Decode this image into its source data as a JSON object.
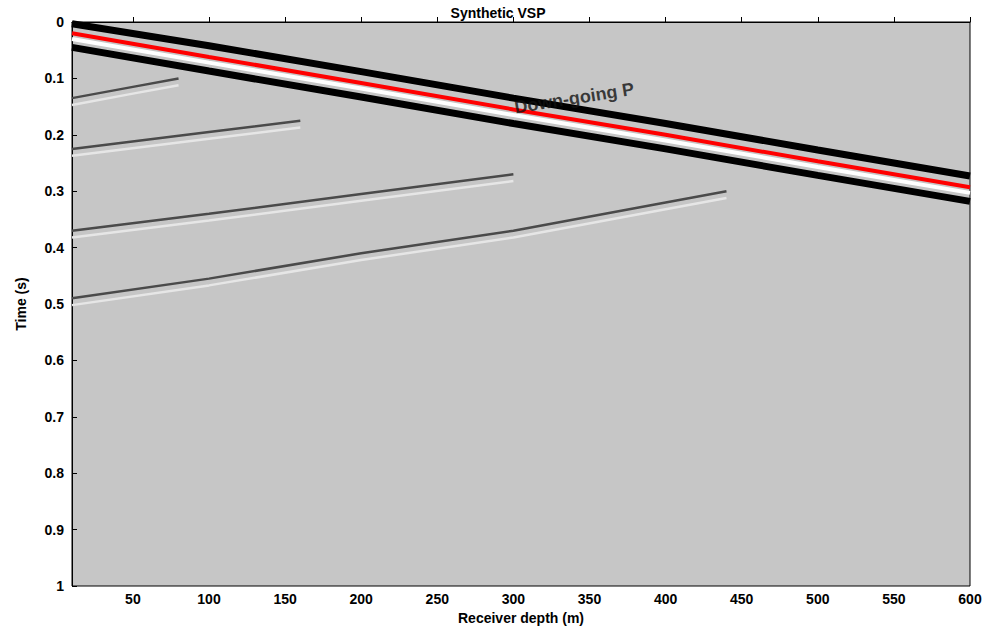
{
  "chart_data": {
    "type": "line",
    "title": "Synthetic VSP",
    "xlabel": "Receiver depth (m)",
    "ylabel": "Time (s)",
    "xlim": [
      10,
      600
    ],
    "xticks": [
      50,
      100,
      150,
      200,
      250,
      300,
      350,
      400,
      450,
      500,
      550,
      600
    ],
    "ylim": [
      0,
      1
    ],
    "yticks": [
      0,
      0.1,
      0.2,
      0.3,
      0.4,
      0.5,
      0.6,
      0.7,
      0.8,
      0.9,
      1
    ],
    "grid": false,
    "annotations": [
      {
        "text": "Down-going P",
        "x": 340,
        "y": 0.135
      }
    ],
    "series": [
      {
        "color": "#4a4a4a",
        "line_style": "solid",
        "x": [
          10,
          50,
          80
        ],
        "values": [
          0.135,
          0.115,
          0.1
        ]
      },
      {
        "color": "#e6e6e6",
        "line_style": "solid",
        "x": [
          10,
          50,
          80
        ],
        "values": [
          0.147,
          0.127,
          0.112
        ]
      },
      {
        "color": "#4a4a4a",
        "line_style": "solid",
        "x": [
          10,
          100,
          160
        ],
        "values": [
          0.225,
          0.195,
          0.175
        ]
      },
      {
        "color": "#e6e6e6",
        "line_style": "solid",
        "x": [
          10,
          100,
          160
        ],
        "values": [
          0.237,
          0.207,
          0.187
        ]
      },
      {
        "color": "#4a4a4a",
        "line_style": "solid",
        "x": [
          10,
          100,
          200,
          300
        ],
        "values": [
          0.37,
          0.34,
          0.305,
          0.27
        ]
      },
      {
        "color": "#e6e6e6",
        "line_style": "solid",
        "x": [
          10,
          100,
          200,
          300
        ],
        "values": [
          0.382,
          0.352,
          0.317,
          0.282
        ]
      },
      {
        "color": "#4a4a4a",
        "line_style": "solid",
        "x": [
          10,
          100,
          200,
          300,
          400,
          440
        ],
        "values": [
          0.49,
          0.455,
          0.41,
          0.37,
          0.32,
          0.3
        ]
      },
      {
        "color": "#e6e6e6",
        "line_style": "solid",
        "x": [
          10,
          100,
          200,
          300,
          400,
          440
        ],
        "values": [
          0.502,
          0.467,
          0.422,
          0.382,
          0.332,
          0.312
        ]
      },
      {
        "color": "#000000",
        "line_style": "bold",
        "x": [
          10,
          100,
          200,
          300,
          400,
          500,
          600
        ],
        "values": [
          0.003,
          0.042,
          0.088,
          0.135,
          0.18,
          0.227,
          0.273
        ]
      },
      {
        "color": "#000000",
        "line_style": "bold",
        "x": [
          10,
          100,
          200,
          300,
          400,
          500,
          600
        ],
        "values": [
          0.045,
          0.087,
          0.133,
          0.18,
          0.225,
          0.272,
          0.318
        ]
      },
      {
        "color": "#ffffff",
        "line_style": "medium",
        "x": [
          10,
          100,
          200,
          300,
          400,
          500,
          600
        ],
        "values": [
          0.03,
          0.072,
          0.118,
          0.165,
          0.21,
          0.257,
          0.303
        ]
      },
      {
        "color": "#ff0000",
        "line_style": "medium",
        "x": [
          10,
          100,
          200,
          300,
          400,
          500,
          600
        ],
        "values": [
          0.02,
          0.062,
          0.108,
          0.155,
          0.2,
          0.247,
          0.293
        ]
      }
    ]
  }
}
